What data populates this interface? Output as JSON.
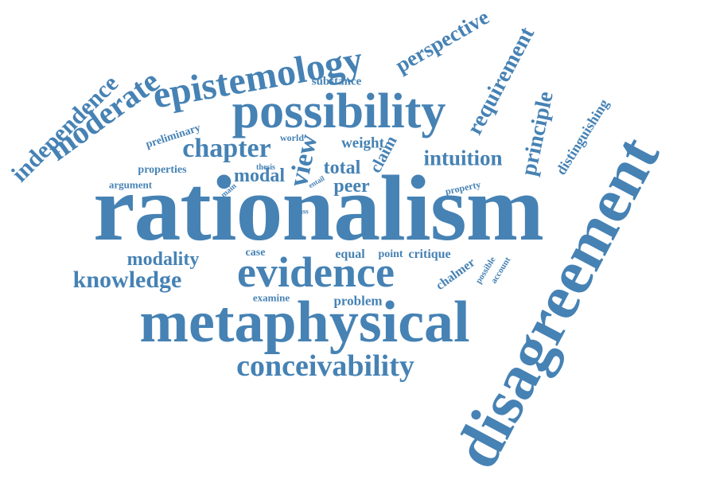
{
  "theme": {
    "word_color": "#4682b4",
    "background": "#ffffff"
  },
  "words": {
    "rationalism": "rationalism",
    "disagreement": "disagreement",
    "metaphysical": "metaphysical",
    "possibility": "possibility",
    "evidence": "evidence",
    "epistemology": "epistemology",
    "conceivability": "conceivability",
    "moderate": "moderate",
    "independence": "independence",
    "chapter": "chapter",
    "knowledge": "knowledge",
    "intuition": "intuition",
    "principle": "principle",
    "requirement": "requirement",
    "perspective": "perspective",
    "view": "view",
    "modality": "modality",
    "modal": "modal",
    "total": "total",
    "peer": "peer",
    "weight": "weight",
    "claim": "claim",
    "problem": "problem",
    "critique": "critique",
    "point": "point",
    "equal": "equal",
    "case": "case",
    "examine": "examine",
    "preliminary": "preliminary",
    "properties": "properties",
    "argument": "argument",
    "substance": "substance",
    "world": "world",
    "thesis": "thesis",
    "main": "main",
    "entail": "entail",
    "single": "single",
    "ass": "ass",
    "property": "property",
    "distinguishing": "distinguishing",
    "chalmer": "chalmer",
    "possible": "possible",
    "account": "account"
  }
}
